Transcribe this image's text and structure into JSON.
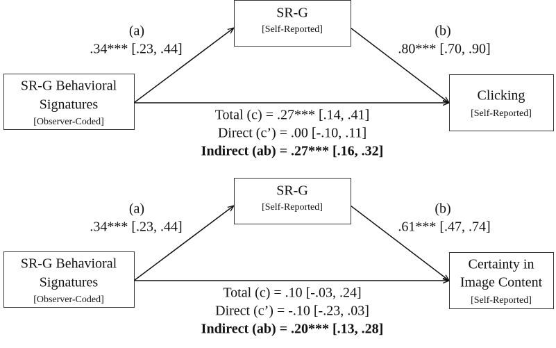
{
  "diagrams": [
    {
      "mediator": {
        "label": "SR-G",
        "sublabel": "[Self-Reported]"
      },
      "predictor": {
        "lines": [
          "SR-G Behavioral",
          "Signatures"
        ],
        "sublabel": "[Observer-Coded]"
      },
      "outcome": {
        "lines": [
          "Clicking"
        ],
        "sublabel": "[Self-Reported]"
      },
      "path_a": {
        "label": "(a)",
        "value": ".34*** [.23, .44]"
      },
      "path_b": {
        "label": "(b)",
        "value": ".80*** [.70, .90]"
      },
      "total": "Total (c) = .27*** [.14, .41]",
      "direct": "Direct (c’) = .00 [-.10, .11]",
      "indirect": "Indirect (ab) = .27*** [.16, .32]"
    },
    {
      "mediator": {
        "label": "SR-G",
        "sublabel": "[Self-Reported]"
      },
      "predictor": {
        "lines": [
          "SR-G Behavioral",
          "Signatures"
        ],
        "sublabel": "[Observer-Coded]"
      },
      "outcome": {
        "lines": [
          "Certainty in",
          "Image Content"
        ],
        "sublabel": "[Self-Reported]"
      },
      "path_a": {
        "label": "(a)",
        "value": ".34*** [.23, .44]"
      },
      "path_b": {
        "label": "(b)",
        "value": ".61*** [.47, .74]"
      },
      "total": "Total (c) = .10 [-.03, .24]",
      "direct": "Direct (c’) = -.10 [-.23, .03]",
      "indirect": "Indirect (ab) = .20*** [.13, .28]"
    }
  ]
}
